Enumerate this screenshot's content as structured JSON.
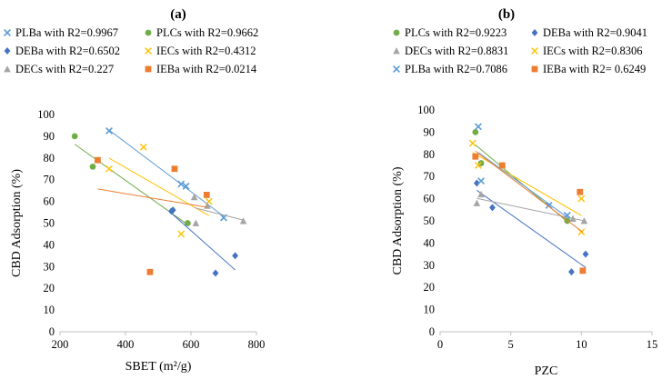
{
  "colors": {
    "PLBa": "#5B9BD5",
    "PLCs": "#70AD47",
    "DEBa": "#4472C4",
    "IECs": "#FFC000",
    "DECs": "#A5A5A5",
    "IEBa": "#ED7D31",
    "axis": "#BFBFBF"
  },
  "chart_data": [
    {
      "type": "scatter",
      "panel_label": "(a)",
      "xlabel": "SBET (m²/g)",
      "ylabel": "CBD Adsorption (%)",
      "xlim": [
        200,
        800
      ],
      "ylim": [
        0,
        100
      ],
      "xticks": [
        "200",
        "400",
        "600",
        "800"
      ],
      "yticks": [
        "0",
        "10",
        "20",
        "30",
        "40",
        "50",
        "60",
        "70",
        "80",
        "90",
        "100"
      ],
      "grid": false,
      "trendlines": true,
      "legend_position": "top",
      "series": [
        {
          "key": "PLBa",
          "name": "PLBa with R2=0.9967",
          "marker": "x",
          "points": [
            [
              350,
              92.5
            ],
            [
              570,
              68
            ],
            [
              585,
              67
            ],
            [
              700,
              52.5
            ]
          ]
        },
        {
          "key": "PLCs",
          "name": "PLCs with R2=0.9662",
          "marker": "circle",
          "points": [
            [
              245,
              90
            ],
            [
              300,
              76
            ],
            [
              590,
              50
            ]
          ]
        },
        {
          "key": "DEBa",
          "name": "DEBa with R2=0.6502",
          "marker": "diamond",
          "points": [
            [
              540,
              55.5
            ],
            [
              545,
              56
            ],
            [
              675,
              27
            ],
            [
              735,
              35
            ]
          ]
        },
        {
          "key": "IECs",
          "name": "IECs with R2=0.4312",
          "marker": "cross",
          "points": [
            [
              350,
              75
            ],
            [
              455,
              85
            ],
            [
              570,
              45
            ],
            [
              655,
              60
            ]
          ]
        },
        {
          "key": "DECs",
          "name": "DECs with R2=0.227",
          "marker": "triangle",
          "points": [
            [
              610,
              62
            ],
            [
              615,
              50
            ],
            [
              650,
              58
            ],
            [
              760,
              51
            ]
          ]
        },
        {
          "key": "IEBa",
          "name": "IEBa with R2=0.0214",
          "marker": "square",
          "points": [
            [
              315,
              79
            ],
            [
              475,
              27.5
            ],
            [
              550,
              75
            ],
            [
              648,
              63
            ]
          ]
        }
      ]
    },
    {
      "type": "scatter",
      "panel_label": "(b)",
      "xlabel": "PZC",
      "ylabel": "CBD Adsorption (%)",
      "xlim": [
        0,
        15
      ],
      "ylim": [
        0,
        100
      ],
      "xticks": [
        "0",
        "5",
        "10",
        "15"
      ],
      "yticks": [
        "0",
        "10",
        "20",
        "30",
        "40",
        "50",
        "60",
        "70",
        "80",
        "90",
        "100"
      ],
      "grid": false,
      "trendlines": true,
      "legend_position": "top",
      "series": [
        {
          "key": "PLCs",
          "name": "PLCs with R2=0.9223",
          "marker": "circle",
          "points": [
            [
              2.5,
              90
            ],
            [
              2.9,
              76
            ],
            [
              9.0,
              50
            ]
          ]
        },
        {
          "key": "DEBa",
          "name": "DEBa with R2=0.9041",
          "marker": "diamond",
          "points": [
            [
              2.6,
              67
            ],
            [
              3.7,
              56
            ],
            [
              9.3,
              27
            ],
            [
              10.3,
              35
            ]
          ]
        },
        {
          "key": "DECs",
          "name": "DECs with R2=0.8831",
          "marker": "triangle",
          "points": [
            [
              2.6,
              58
            ],
            [
              2.9,
              62
            ],
            [
              9.4,
              51
            ],
            [
              10.2,
              50
            ]
          ]
        },
        {
          "key": "IECs",
          "name": "IECs with R2=0.8306",
          "marker": "cross",
          "points": [
            [
              2.3,
              85
            ],
            [
              2.7,
              75
            ],
            [
              10.0,
              60
            ],
            [
              10.0,
              45
            ]
          ]
        },
        {
          "key": "PLBa",
          "name": "PLBa with R2=0.7086",
          "marker": "x",
          "points": [
            [
              2.7,
              92.5
            ],
            [
              2.9,
              68
            ],
            [
              7.7,
              57
            ],
            [
              9.0,
              52.5
            ]
          ]
        },
        {
          "key": "IEBa",
          "name": "IEBa with R2= 0.6249",
          "marker": "square",
          "points": [
            [
              2.5,
              79
            ],
            [
              4.4,
              75
            ],
            [
              9.9,
              63
            ],
            [
              10.1,
              27.5
            ]
          ]
        }
      ]
    }
  ]
}
